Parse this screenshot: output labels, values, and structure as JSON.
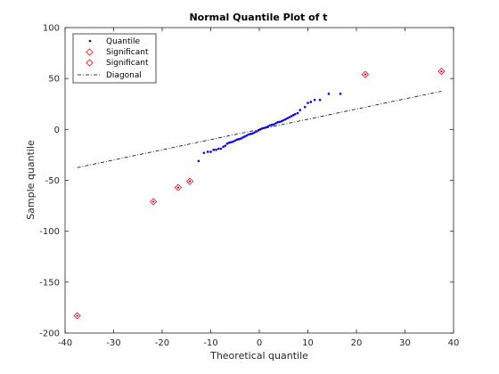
{
  "chart_data": {
    "type": "scatter",
    "title": "Normal Quantile Plot of t",
    "xlabel": "Theoretical quantile",
    "ylabel": "Sample quantile",
    "xlim": [
      -40,
      40
    ],
    "ylim": [
      -200,
      100
    ],
    "xticks": [
      -40,
      -30,
      -20,
      -10,
      0,
      10,
      20,
      30,
      40
    ],
    "yticks": [
      -200,
      -150,
      -100,
      -50,
      0,
      50,
      100
    ],
    "grid": false,
    "legend_position": "top-left",
    "colors": {
      "quantile": "#0000ff",
      "significant_marker": "#ff0000",
      "significant_marker_inner": "#800080",
      "diagonal": "#000000",
      "axes": "#262626"
    },
    "series": [
      {
        "name": "Quantile",
        "marker": "dot",
        "x": [
          -12.5,
          -11.4,
          -10.6,
          -10.0,
          -9.4,
          -8.9,
          -8.4,
          -7.9,
          -7.4,
          -7.0,
          -6.6,
          -6.2,
          -5.8,
          -5.4,
          -5.0,
          -4.6,
          -4.2,
          -3.8,
          -3.4,
          -3.0,
          -2.6,
          -2.2,
          -1.8,
          -1.4,
          -1.0,
          -0.6,
          -0.2,
          0.2,
          0.6,
          1.0,
          1.4,
          1.8,
          2.2,
          2.6,
          3.0,
          3.4,
          3.8,
          4.2,
          4.6,
          5.0,
          5.4,
          5.8,
          6.2,
          6.6,
          7.0,
          7.4,
          7.9,
          8.4,
          9.4,
          10.0,
          10.6,
          11.4,
          12.5,
          14.3,
          16.7
        ],
        "y": [
          -31,
          -23,
          -22,
          -22,
          -20,
          -20,
          -19,
          -19,
          -17,
          -16,
          -14,
          -13,
          -12.5,
          -12,
          -11,
          -10,
          -9.5,
          -9,
          -8,
          -7,
          -6,
          -5,
          -4.5,
          -4,
          -3,
          -2,
          -1,
          0,
          1,
          1.5,
          2,
          3,
          4,
          4.5,
          5,
          6,
          7,
          7.5,
          8,
          9,
          10,
          11,
          12,
          13,
          14,
          15,
          16,
          19,
          22,
          26,
          27,
          29,
          29,
          35,
          35
        ]
      },
      {
        "name": "Significant",
        "marker": "diamond",
        "x": [
          -37.5,
          -21.8,
          -16.7,
          -14.3
        ],
        "y": [
          -183,
          -71,
          -57,
          -51
        ]
      },
      {
        "name": "Significant",
        "marker": "diamond",
        "x": [
          21.8,
          37.5
        ],
        "y": [
          54,
          57
        ]
      },
      {
        "name": "Diagonal",
        "marker": "dashdot-line",
        "x": [
          -37.5,
          37.5
        ],
        "y": [
          -37.5,
          37.5
        ]
      }
    ]
  }
}
